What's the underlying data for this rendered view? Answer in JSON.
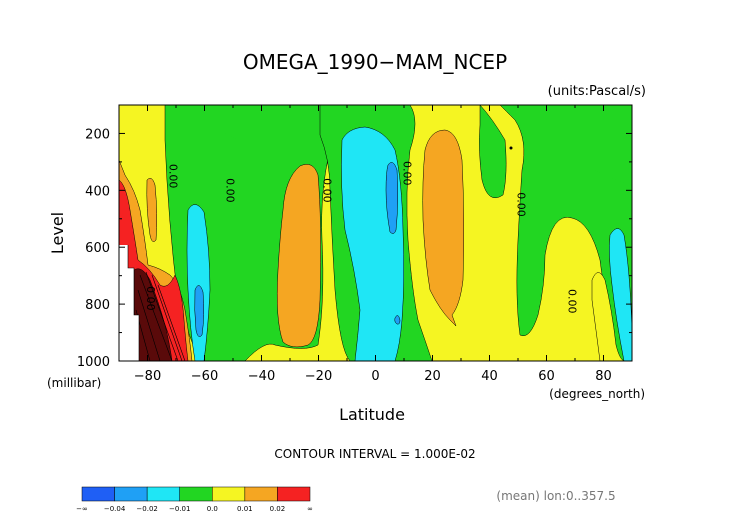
{
  "chart_data": {
    "type": "contour",
    "title": "OMEGA_1990−MAM_NCEP",
    "units_label": "(units:Pascal/s)",
    "xlabel": "Latitude",
    "x_units": "(degrees_north)",
    "ylabel": "Level",
    "y_units": "(millibar)",
    "xlim": [
      -90,
      90
    ],
    "ylim": [
      1000,
      100
    ],
    "x_ticks": [
      -80,
      -60,
      -40,
      -20,
      0,
      20,
      40,
      60,
      80
    ],
    "x_tick_labels": [
      "−80",
      "−60",
      "−40",
      "−20",
      "0",
      "20",
      "40",
      "60",
      "80"
    ],
    "y_ticks": [
      200,
      400,
      600,
      800,
      1000
    ],
    "y_tick_labels": [
      "200",
      "400",
      "600",
      "800",
      "1000"
    ],
    "contour_interval_label": "CONTOUR INTERVAL = 1.000E-02",
    "footnote": "(mean) lon:0..357.5",
    "contour_labels": [
      {
        "text": "0.00",
        "lat": -71,
        "level": 350
      },
      {
        "text": "0.00",
        "lat": -51,
        "level": 400
      },
      {
        "text": "0.00",
        "lat": -17,
        "level": 400
      },
      {
        "text": "0.00",
        "lat": 11,
        "level": 340
      },
      {
        "text": "0.00",
        "lat": 51,
        "level": 450
      },
      {
        "text": "0.00",
        "lat": -79,
        "level": 780
      },
      {
        "text": "0.00",
        "lat": 69,
        "level": 790
      }
    ],
    "colorbar": {
      "labels": [
        "−∞",
        "−0.04",
        "−0.02",
        "−0.01",
        "0.0",
        "0.01",
        "0.02",
        "∞"
      ],
      "colors": [
        "#1f5ff5",
        "#1fa0f5",
        "#1fe6f5",
        "#22d622",
        "#f5f522",
        "#f5a622",
        "#f52222"
      ]
    },
    "bands": [
      {
        "name": "strong-descent-band",
        "color": "#f52222",
        "approx_range": [
          0.02,
          0.03
        ]
      },
      {
        "name": "descent-band",
        "color": "#f5a622",
        "approx_range": [
          0.01,
          0.02
        ]
      },
      {
        "name": "weak-descent-band",
        "color": "#f5f522",
        "approx_range": [
          0.0,
          0.01
        ]
      },
      {
        "name": "weak-ascent-band",
        "color": "#22d622",
        "approx_range": [
          -0.01,
          0.0
        ]
      },
      {
        "name": "ascent-band",
        "color": "#1fe6f5",
        "approx_range": [
          -0.02,
          -0.01
        ]
      },
      {
        "name": "strong-ascent-band",
        "color": "#1fa0f5",
        "approx_range": [
          -0.04,
          -0.02
        ]
      }
    ]
  },
  "colors": {
    "background": "#ffffff",
    "frame": "#000000",
    "darkest": "#5a0a0a"
  }
}
